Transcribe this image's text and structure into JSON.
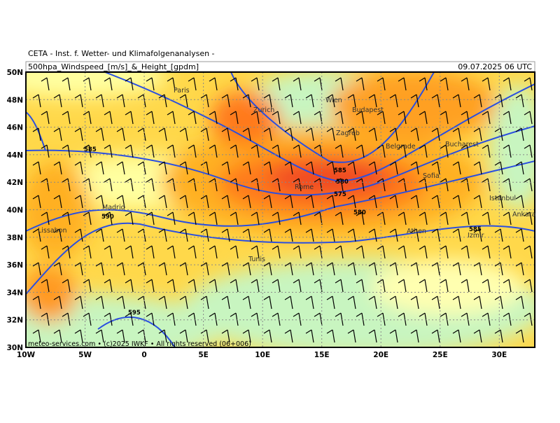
{
  "header": {
    "institute": "CETA - Inst. f. Wetter- und Klimafolgenanalysen -",
    "title": "500hpa_Windspeed_[m/s]_&_Height_[gpdm]",
    "date": "09.07.2025 06 UTC"
  },
  "axes": {
    "lat_ticks": [
      {
        "value": 30,
        "label": "30N"
      },
      {
        "value": 32,
        "label": "32N"
      },
      {
        "value": 34,
        "label": "34N"
      },
      {
        "value": 36,
        "label": "36N"
      },
      {
        "value": 38,
        "label": "38N"
      },
      {
        "value": 40,
        "label": "40N"
      },
      {
        "value": 42,
        "label": "42N"
      },
      {
        "value": 44,
        "label": "44N"
      },
      {
        "value": 46,
        "label": "46N"
      },
      {
        "value": 48,
        "label": "48N"
      },
      {
        "value": 50,
        "label": "50N"
      }
    ],
    "lon_ticks": [
      {
        "value": -10,
        "label": "10W"
      },
      {
        "value": -5,
        "label": "5W"
      },
      {
        "value": 0,
        "label": "0"
      },
      {
        "value": 5,
        "label": "5E"
      },
      {
        "value": 10,
        "label": "10E"
      },
      {
        "value": 15,
        "label": "15E"
      },
      {
        "value": 20,
        "label": "20E"
      },
      {
        "value": 25,
        "label": "25E"
      },
      {
        "value": 30,
        "label": "30E"
      }
    ],
    "lon_range": [
      -10,
      33
    ],
    "lat_range": [
      30,
      50
    ]
  },
  "cities": [
    "Paris",
    "Zurich",
    "Wien",
    "Budapest",
    "Zagreb",
    "Belgrade",
    "Bucharest",
    "Sofia",
    "Rome",
    "Madrid",
    "Lissabon",
    "Istanbul",
    "Ankara",
    "Athen",
    "Izmir",
    "Tunis"
  ],
  "contour_labels": [
    "585",
    "590",
    "595",
    "585",
    "580",
    "575",
    "580",
    "585"
  ],
  "footer": "meteo-services.com • (c)2025 IWKF • All rights reserved (06+006)"
}
